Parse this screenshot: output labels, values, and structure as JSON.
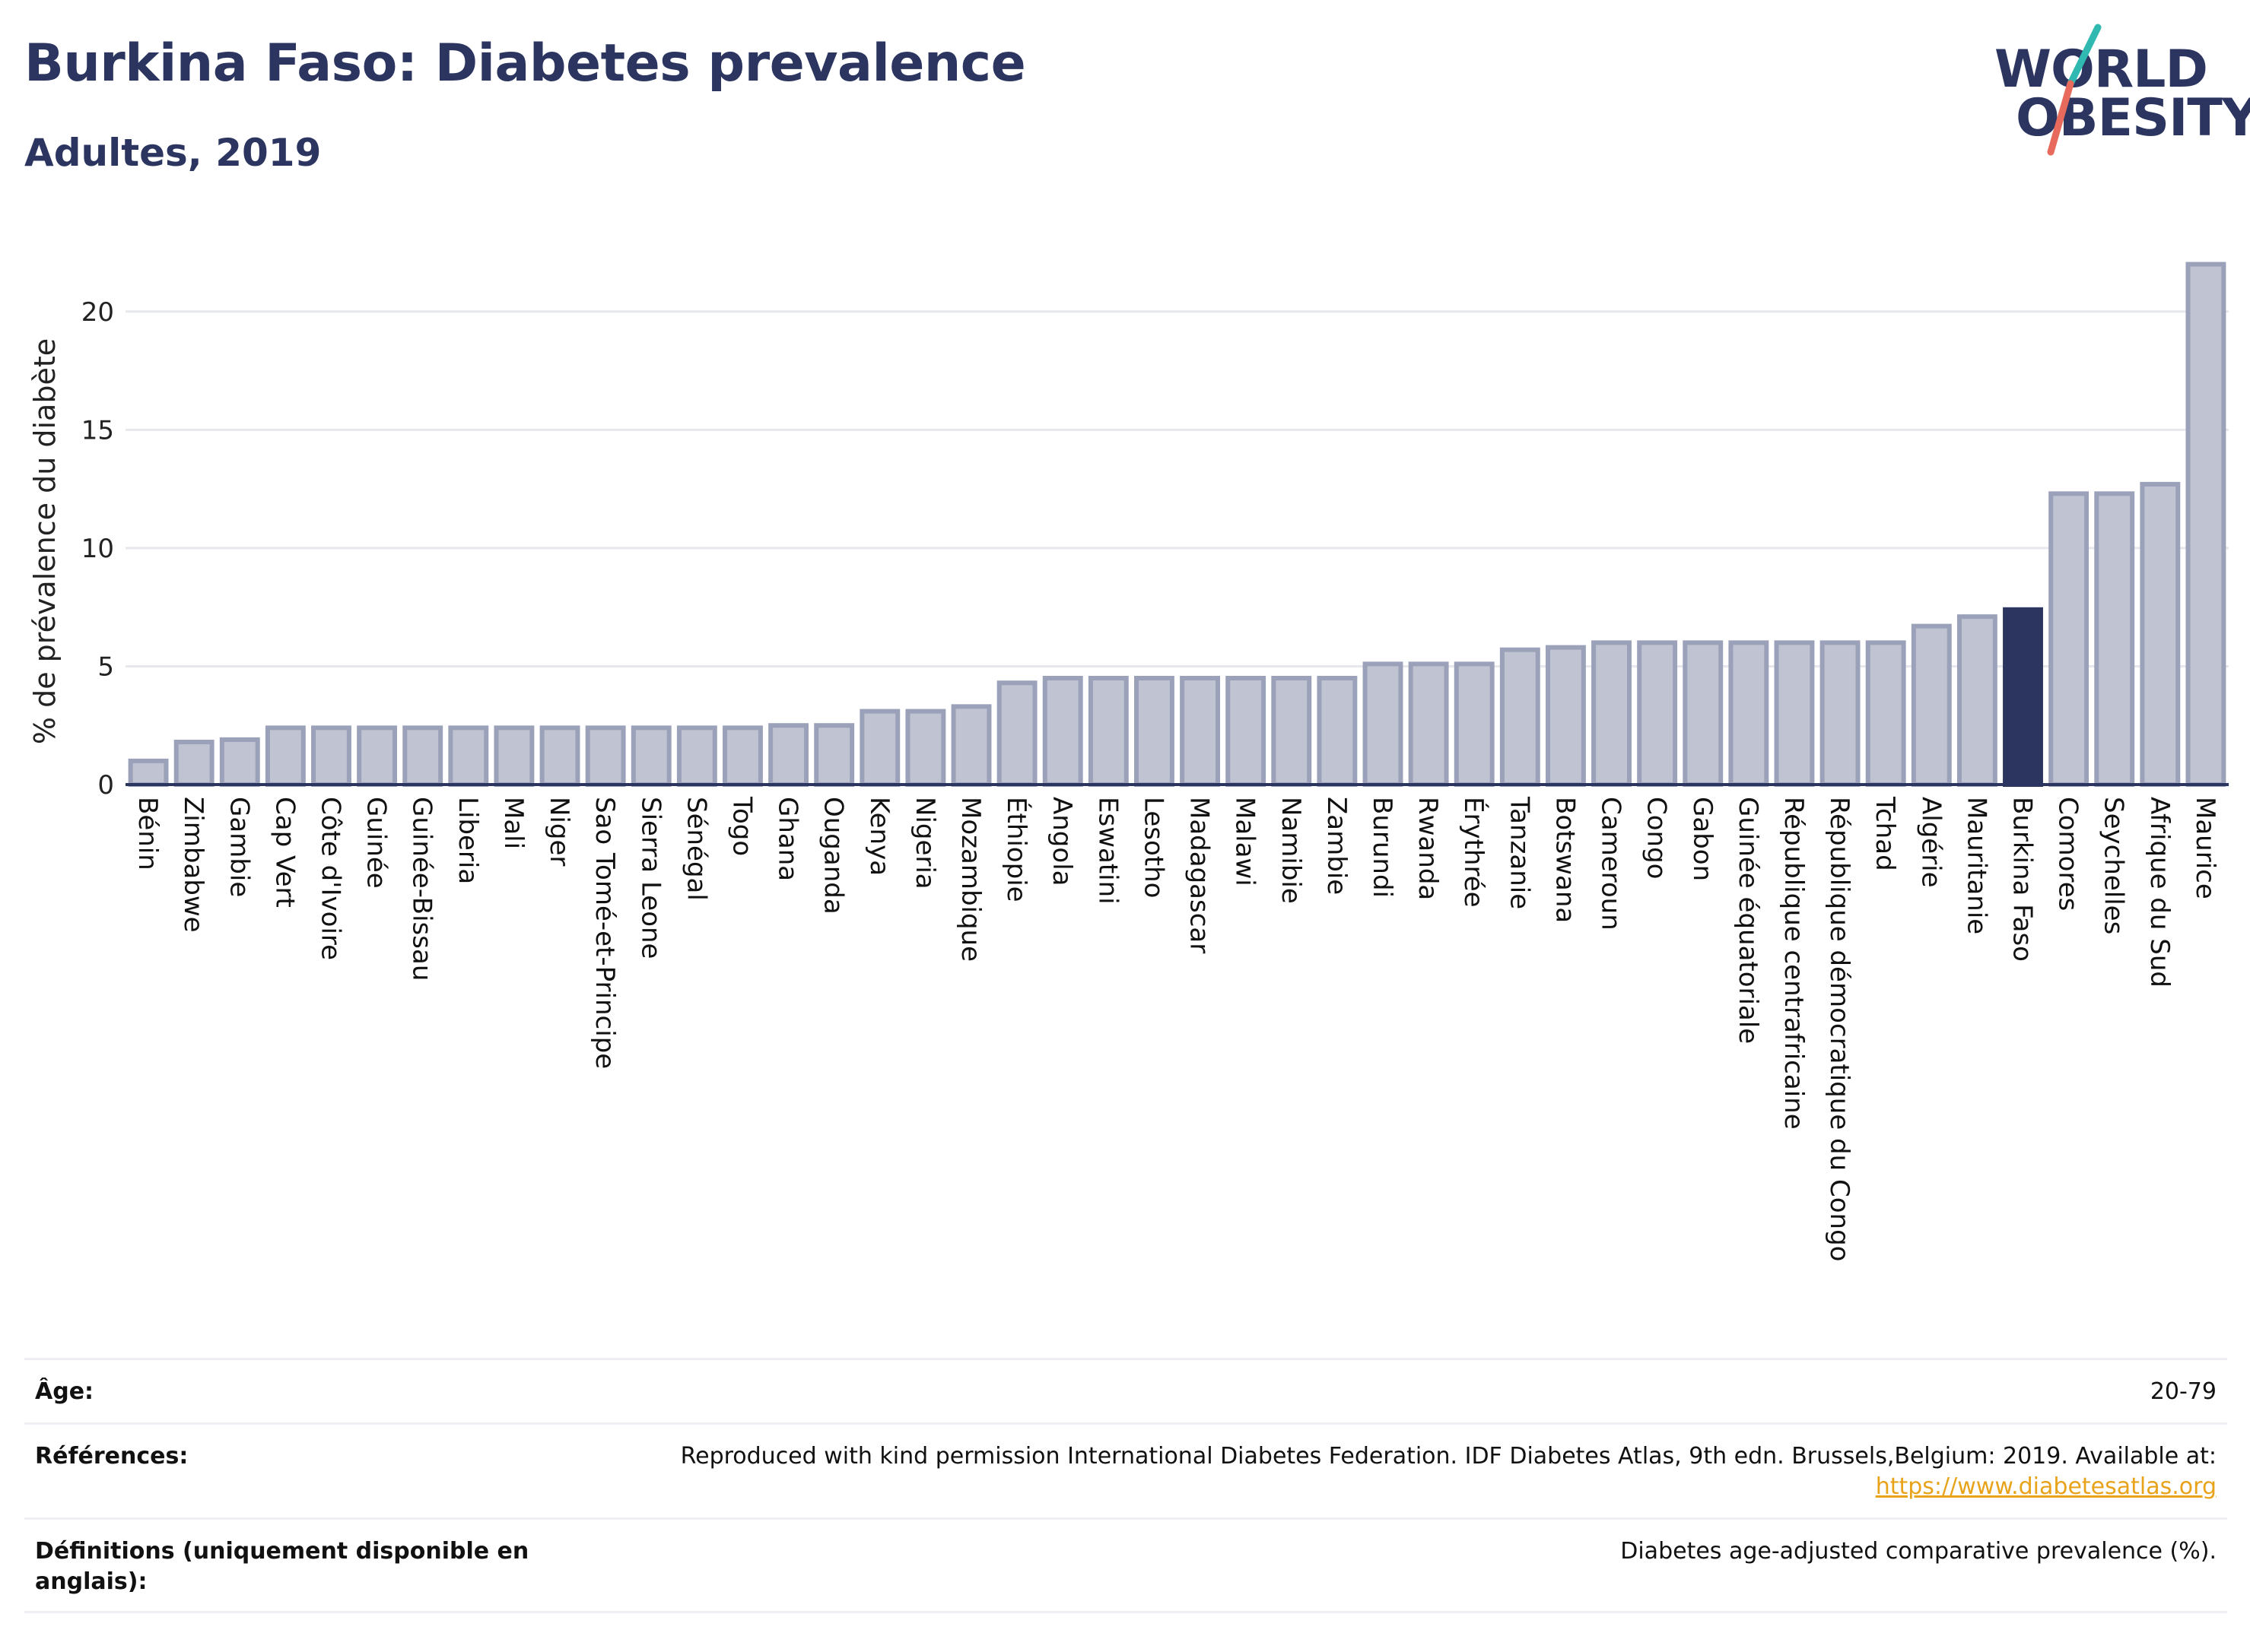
{
  "header": {
    "title": "Burkina Faso: Diabetes prevalence",
    "subtitle": "Adultes, 2019"
  },
  "logo": {
    "line1": "WORLD",
    "line2": "OBESITY"
  },
  "colors": {
    "bar": "#bfc3d2",
    "bar_stroke": "#9aa1b9",
    "highlight": "#2b3560",
    "grid": "#e6e8ee",
    "axis": "#2b3560",
    "logo_teal": "#2fb9b0",
    "logo_coral": "#e86a5c"
  },
  "chart_data": {
    "type": "bar",
    "title": "Burkina Faso: Diabetes prevalence",
    "subtitle": "Adultes, 2019",
    "xlabel": "",
    "ylabel": "% de prévalence du diabète",
    "ylim": [
      0,
      22.5
    ],
    "yticks": [
      0,
      5,
      10,
      15,
      20
    ],
    "grid": true,
    "highlight": "Burkina Faso",
    "categories": [
      "Bénin",
      "Zimbabwe",
      "Gambie",
      "Cap Vert",
      "Côte d'Ivoire",
      "Guinée",
      "Guinée-Bissau",
      "Liberia",
      "Mali",
      "Niger",
      "Sao Tomé-et-Principe",
      "Sierra Leone",
      "Sénégal",
      "Togo",
      "Ghana",
      "Ouganda",
      "Kenya",
      "Nigeria",
      "Mozambique",
      "Éthiopie",
      "Angola",
      "Eswatini",
      "Lesotho",
      "Madagascar",
      "Malawi",
      "Namibie",
      "Zambie",
      "Burundi",
      "Rwanda",
      "Érythrée",
      "Tanzanie",
      "Botswana",
      "Cameroun",
      "Congo",
      "Gabon",
      "Guinée équatoriale",
      "République centrafricaine",
      "République démocratique du Congo",
      "Tchad",
      "Algérie",
      "Mauritanie",
      "Burkina Faso",
      "Comores",
      "Seychelles",
      "Afrique du Sud",
      "Maurice"
    ],
    "values": [
      1.0,
      1.8,
      1.9,
      2.4,
      2.4,
      2.4,
      2.4,
      2.4,
      2.4,
      2.4,
      2.4,
      2.4,
      2.4,
      2.4,
      2.5,
      2.5,
      3.1,
      3.1,
      3.3,
      4.3,
      4.5,
      4.5,
      4.5,
      4.5,
      4.5,
      4.5,
      4.5,
      5.1,
      5.1,
      5.1,
      5.7,
      5.8,
      6.0,
      6.0,
      6.0,
      6.0,
      6.0,
      6.0,
      6.0,
      6.7,
      7.1,
      7.4,
      12.3,
      12.3,
      12.7,
      22.0
    ]
  },
  "info": {
    "age_label": "Âge:",
    "age_value": "20-79",
    "references_label": "Références:",
    "references_text": "Reproduced with kind permission International Diabetes Federation. IDF Diabetes Atlas, 9th edn. Brussels,Belgium: 2019. Available at:",
    "references_link": "https://www.diabetesatlas.org",
    "definitions_label": "Définitions (uniquement disponible en anglais):",
    "definitions_value": "Diabetes age-adjusted comparative prevalence (%)."
  }
}
